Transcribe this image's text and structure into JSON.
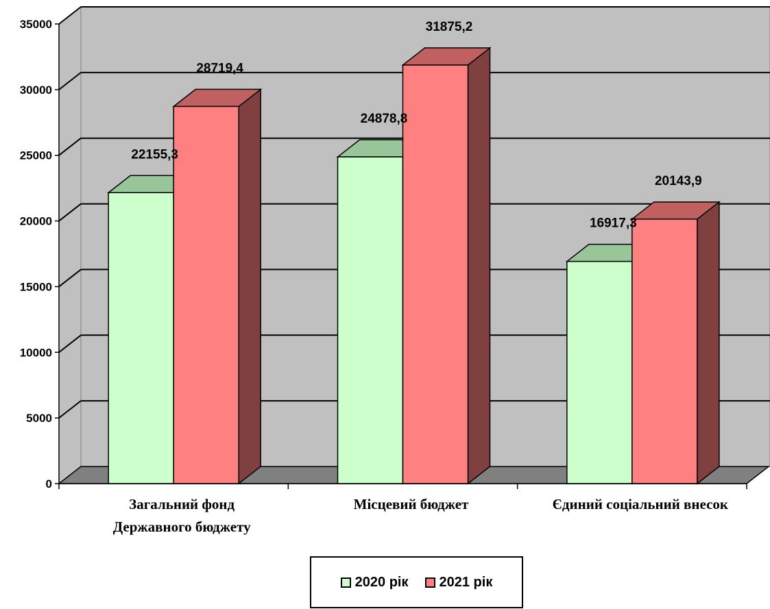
{
  "chart_data": {
    "type": "bar",
    "categories": [
      [
        "Загальний фонд",
        "Державного бюджету"
      ],
      [
        "Місцевий бюджет"
      ],
      [
        "Єдиний соціальний внесок"
      ]
    ],
    "series": [
      {
        "name": "2020 рік",
        "values": [
          22155.3,
          24878.8,
          16917.3
        ],
        "labels": [
          "22155,3",
          "24878,8",
          "16917,3"
        ],
        "color": "#CCFFCC",
        "top_color": "#99C699",
        "side_color": "#7FA37F"
      },
      {
        "name": "2021 рік",
        "values": [
          28719.4,
          31875.2,
          20143.9
        ],
        "labels": [
          "28719,4",
          "31875,2",
          "20143,9"
        ],
        "color": "#FF8080",
        "top_color": "#C06060",
        "side_color": "#804040"
      }
    ],
    "ylim": [
      0,
      35000
    ],
    "yticks": [
      "0",
      "5000",
      "10000",
      "15000",
      "20000",
      "25000",
      "30000",
      "35000"
    ],
    "grid": true,
    "three_d": true,
    "legend_position": "bottom",
    "wall_color": "#C0C0C0",
    "floor_color": "#808080"
  }
}
